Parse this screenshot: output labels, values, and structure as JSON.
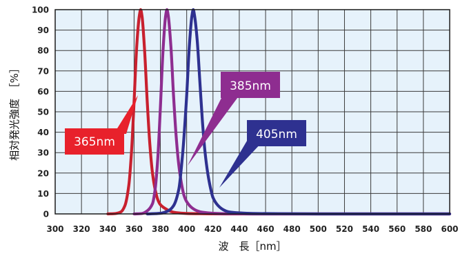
{
  "chart_data": {
    "type": "line",
    "title": "",
    "xlabel": "波　長［nm］",
    "ylabel": "相対発光強度　［%］",
    "xlim": [
      300,
      600
    ],
    "ylim": [
      0,
      100
    ],
    "x_ticks": [
      300,
      320,
      340,
      360,
      380,
      400,
      420,
      440,
      460,
      480,
      500,
      520,
      540,
      560,
      580,
      600
    ],
    "y_ticks": [
      0,
      10,
      20,
      30,
      40,
      50,
      60,
      70,
      80,
      90,
      100
    ],
    "grid": true,
    "plot_background": "#e6f2fb",
    "series": [
      {
        "name": "365nm",
        "color": "#c8202e",
        "x": [
          340,
          346,
          350,
          353,
          356,
          358,
          360,
          362,
          364,
          365,
          366,
          368,
          370,
          372,
          374,
          376,
          378,
          380,
          384,
          388,
          392,
          400,
          410,
          430,
          600
        ],
        "y": [
          0,
          0.2,
          1,
          4,
          14,
          30,
          55,
          82,
          97,
          100,
          97,
          80,
          55,
          34,
          20,
          12,
          7,
          4.5,
          2.5,
          1.2,
          0.6,
          0.2,
          0.1,
          0,
          0
        ]
      },
      {
        "name": "385nm",
        "color": "#8e2d90",
        "x": [
          360,
          366,
          370,
          374,
          376,
          378,
          380,
          382,
          384,
          385,
          386,
          388,
          390,
          392,
          394,
          396,
          398,
          400,
          404,
          408,
          412,
          420,
          430,
          450,
          600
        ],
        "y": [
          0,
          0.2,
          1.5,
          5,
          12,
          27,
          52,
          80,
          97,
          100,
          97,
          82,
          58,
          38,
          24,
          15,
          9,
          6,
          3,
          1.5,
          0.8,
          0.3,
          0.1,
          0,
          0
        ]
      },
      {
        "name": "405nm",
        "color": "#2e3190",
        "x": [
          370,
          380,
          386,
          390,
          394,
          397,
          400,
          402,
          404,
          405,
          406,
          408,
          410,
          412,
          414,
          416,
          418,
          420,
          424,
          428,
          432,
          440,
          450,
          470,
          500,
          600
        ],
        "y": [
          0,
          0.3,
          1.5,
          4,
          12,
          30,
          58,
          82,
          97,
          100,
          97,
          85,
          65,
          45,
          30,
          20,
          13,
          8,
          4,
          2,
          1,
          0.5,
          0.2,
          0.1,
          0,
          0
        ]
      }
    ],
    "annotations": [
      {
        "text": "365nm",
        "series": "365nm",
        "color": "#e8212b"
      },
      {
        "text": "385nm",
        "series": "385nm",
        "color": "#8e2d90"
      },
      {
        "text": "405nm",
        "series": "405nm",
        "color": "#2e3190"
      }
    ]
  }
}
